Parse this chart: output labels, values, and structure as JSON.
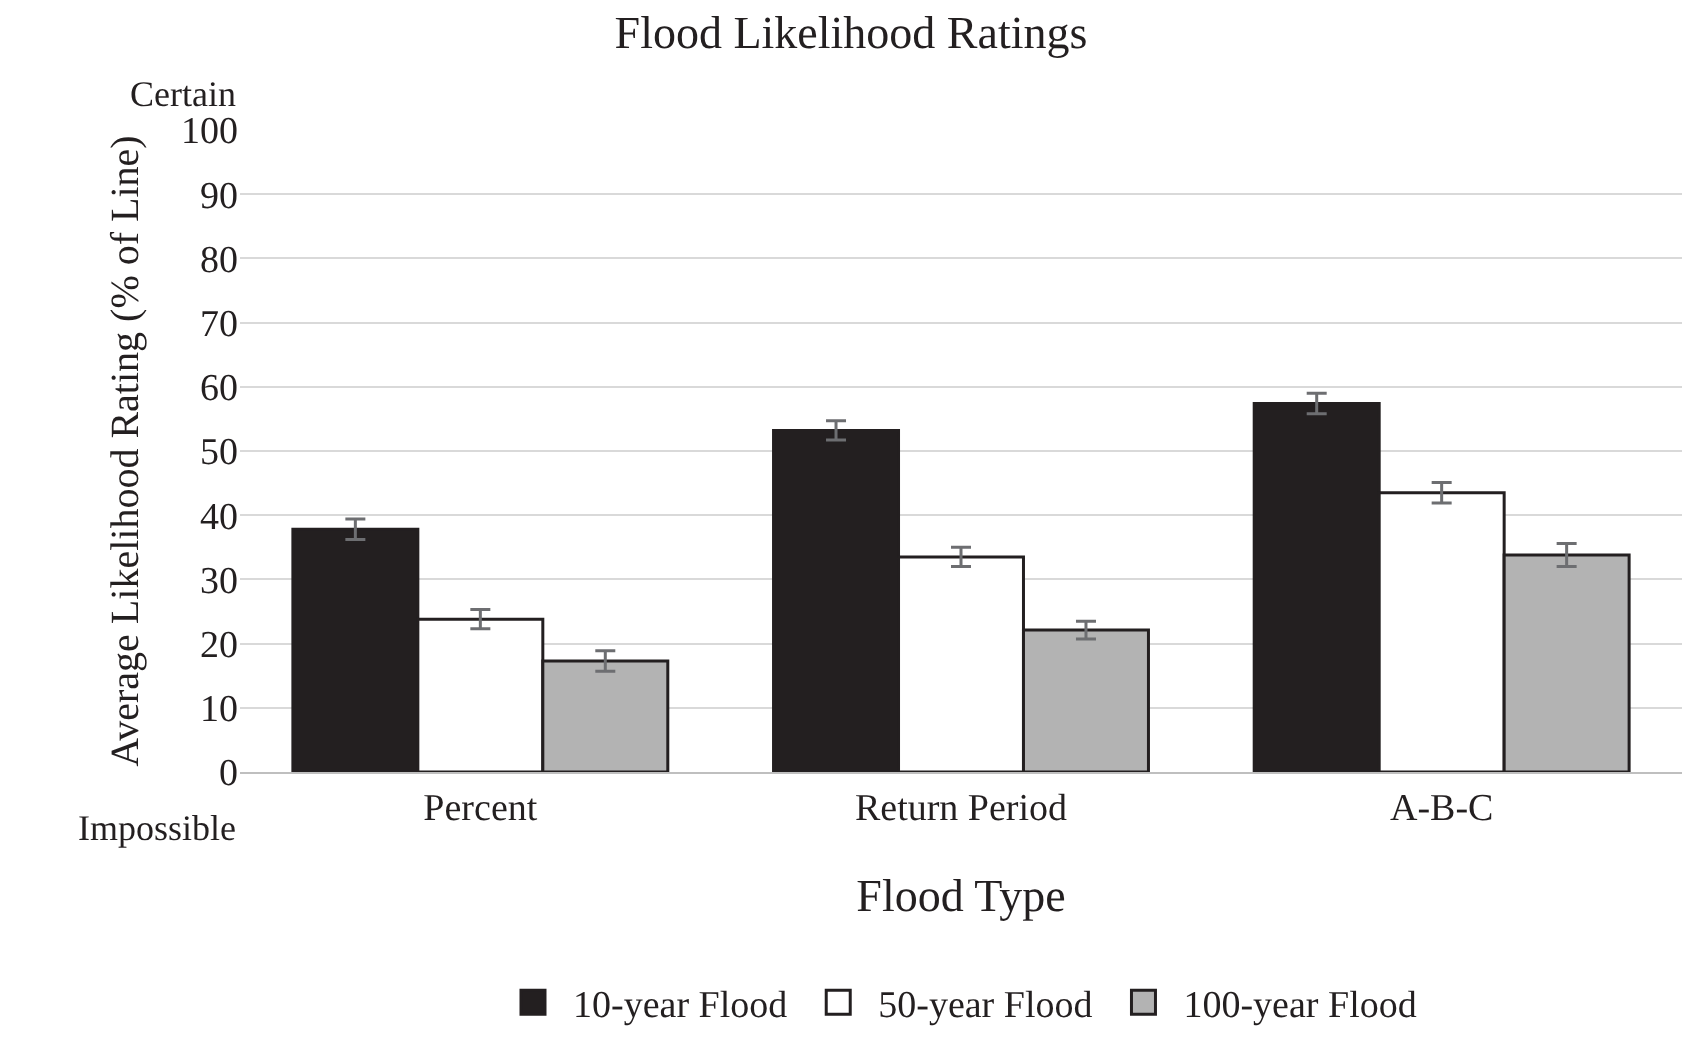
{
  "chart_data": {
    "type": "bar",
    "title": "Flood Likelihood Ratings",
    "xlabel": "Flood Type",
    "ylabel": "Average Likelihood Rating (% of Line)",
    "categories": [
      "Percent",
      "Return Period",
      "A-B-C"
    ],
    "series": [
      {
        "name": "10-year Flood",
        "color": "#231f20",
        "values": [
          37.8,
          53.2,
          57.4
        ],
        "errors": [
          1.6,
          1.5,
          1.6
        ]
      },
      {
        "name": "50-year Flood",
        "color": "#ffffff",
        "values": [
          23.8,
          33.5,
          43.5
        ],
        "errors": [
          1.5,
          1.5,
          1.6
        ]
      },
      {
        "name": "100-year Flood",
        "color": "#b3b3b3",
        "values": [
          17.3,
          22.1,
          33.8
        ],
        "errors": [
          1.6,
          1.4,
          1.8
        ]
      }
    ],
    "ylim": [
      0,
      100
    ],
    "yticks": [
      0,
      10,
      20,
      30,
      40,
      50,
      60,
      70,
      80,
      90,
      100
    ],
    "grid": "y",
    "legend": "bottom",
    "annotations": [
      "Certain",
      "Impossible"
    ]
  }
}
